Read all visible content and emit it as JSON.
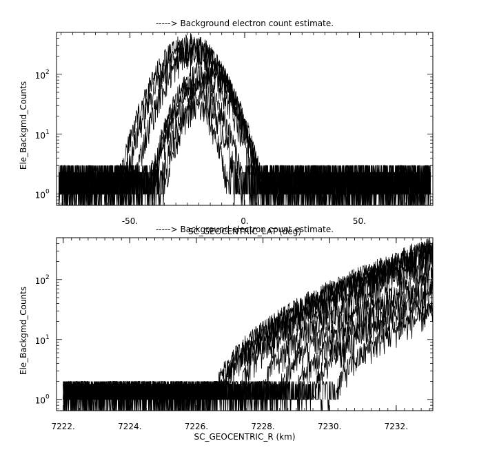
{
  "chart_data": [
    {
      "type": "line",
      "title": "-----> Background electron count estimate.",
      "xlabel": "SC_GEOCENTRIC_LAT (deg)",
      "ylabel": "Ele_Backgmd_Counts",
      "yscale": "log",
      "xlim": [
        -82,
        82
      ],
      "ylim": [
        0.65,
        500
      ],
      "x_ticks": [
        -50,
        0,
        50
      ],
      "x_tick_labels": [
        "-50.",
        "0.",
        "50."
      ],
      "y_ticks": [
        1,
        10,
        100
      ],
      "y_tick_labels": [
        "10",
        "10",
        "10"
      ],
      "y_tick_exponents": [
        "0",
        "1",
        "2"
      ],
      "x_data_range": [
        -81,
        81
      ],
      "background_level": [
        1,
        3
      ],
      "series": [
        {
          "peak_x": -24,
          "peak_y": 330,
          "width_deg": 17
        },
        {
          "peak_x": -23,
          "peak_y": 280,
          "width_deg": 16.5
        },
        {
          "peak_x": -21,
          "peak_y": 240,
          "width_deg": 15.5
        },
        {
          "peak_x": -17,
          "peak_y": 120,
          "width_deg": 15
        },
        {
          "peak_x": -18,
          "peak_y": 95,
          "width_deg": 14
        },
        {
          "peak_x": -20,
          "peak_y": 60,
          "width_deg": 13
        },
        {
          "peak_x": -20,
          "peak_y": 38,
          "width_deg": 12
        },
        {
          "peak_x": -21,
          "peak_y": 28,
          "width_deg": 10
        }
      ]
    },
    {
      "type": "line",
      "title": "-----> Background electron count estimate.",
      "xlabel": "SC_GEOCENTRIC_R (km)",
      "ylabel": "Ele_Backgmd_Counts",
      "yscale": "log",
      "xlim": [
        7221.8,
        7233.1
      ],
      "ylim": [
        0.65,
        500
      ],
      "x_ticks": [
        7222,
        7224,
        7226,
        7228,
        7230,
        7232
      ],
      "x_tick_labels": [
        "7222.",
        "7224.",
        "7226.",
        "7228.",
        "7230.",
        "7232."
      ],
      "y_ticks": [
        1,
        10,
        100
      ],
      "y_tick_labels": [
        "10",
        "10",
        "10"
      ],
      "y_tick_exponents": [
        "0",
        "1",
        "2"
      ],
      "x_data_range": [
        7222,
        7233.1
      ],
      "background_level": [
        1,
        2
      ],
      "series": [
        {
          "onset_x": 7226.6,
          "end_y": 300
        },
        {
          "onset_x": 7226.7,
          "end_y": 280
        },
        {
          "onset_x": 7226.8,
          "end_y": 250
        },
        {
          "onset_x": 7227.3,
          "end_y": 220
        },
        {
          "onset_x": 7228.0,
          "end_y": 160
        },
        {
          "onset_x": 7228.5,
          "end_y": 90
        },
        {
          "onset_x": 7229.0,
          "end_y": 60
        },
        {
          "onset_x": 7229.5,
          "end_y": 40
        },
        {
          "onset_x": 7230.2,
          "end_y": 25
        }
      ]
    }
  ]
}
